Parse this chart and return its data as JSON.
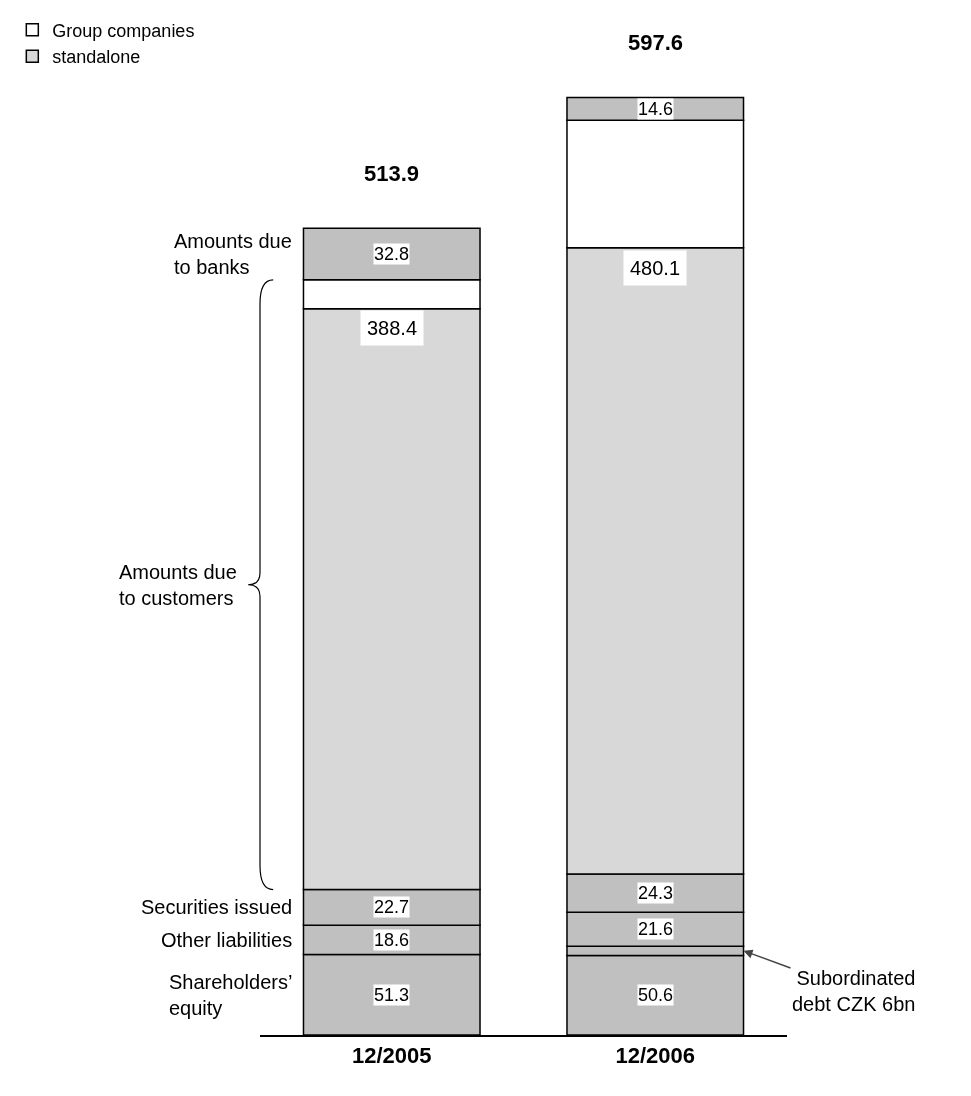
{
  "chart_data": {
    "type": "bar",
    "stacked": true,
    "categories": [
      "12/2005",
      "12/2006"
    ],
    "series": [
      {
        "name": "Shareholders’ equity",
        "color": "#c0c0c0",
        "values": [
          51.3,
          50.6
        ],
        "value_labels": [
          "51.3",
          "50.6"
        ]
      },
      {
        "name": "Subordinated debt CZK 6bn",
        "color": "#c0c0c0",
        "values": [
          null,
          6
        ],
        "value_labels": [
          null,
          null
        ]
      },
      {
        "name": "Other liabilities",
        "color": "#c0c0c0",
        "values": [
          18.6,
          21.6
        ],
        "value_labels": [
          "18.6",
          "21.6"
        ]
      },
      {
        "name": "Securities issued",
        "color": "#c0c0c0",
        "values": [
          22.7,
          24.3
        ],
        "value_labels": [
          "22.7",
          "24.3"
        ]
      },
      {
        "name": "standalone",
        "color": "#d8d8d8",
        "values": [
          370,
          399
        ]
      },
      {
        "name": "Group companies",
        "color": "#ffffff",
        "values": [
          18.4,
          81.1
        ]
      },
      {
        "name": "Amounts due to banks",
        "color": "#c0c0c0",
        "values": [
          32.8,
          14.6
        ],
        "value_labels": [
          "32.8",
          "14.6"
        ]
      }
    ],
    "totals": [
      "513.9",
      "597.6"
    ],
    "annotations": [
      "Amounts due to customers",
      {
        "text": "388.4",
        "x": "12/2005",
        "y": 462
      },
      {
        "text": "480.1",
        "x": "12/2006",
        "y": 500
      }
    ],
    "legend": "top left"
  }
}
